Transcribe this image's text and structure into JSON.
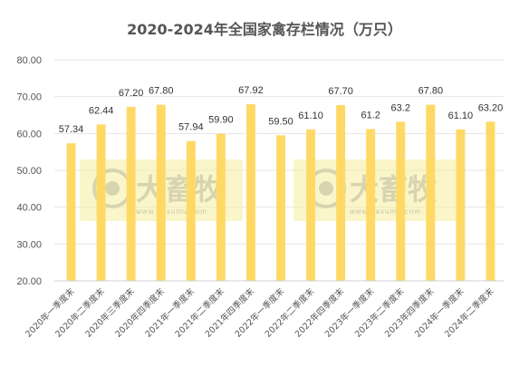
{
  "chart_data": {
    "type": "bar",
    "title": "2020-2024年全国家禽存栏情况（万只）",
    "categories": [
      "2020年一季度末",
      "2020年二季度末",
      "2020年三季度末",
      "2020年四季度末",
      "2021年一季度末",
      "2021年二季度末",
      "2021年四季度末",
      "2022年一季度末",
      "2022年二季度末",
      "2022年四季度末",
      "2023年一季度末",
      "2023年二季度末",
      "2023年四季度末",
      "2024年一季度末",
      "2024年二季度末"
    ],
    "values": [
      57.34,
      62.44,
      67.2,
      67.8,
      57.94,
      59.9,
      67.92,
      59.5,
      61.1,
      67.7,
      61.2,
      63.2,
      67.8,
      61.1,
      63.2
    ],
    "value_labels": [
      "57.34",
      "62.44",
      "67.20",
      "67.80",
      "57.94",
      "59.90",
      "67.92",
      "59.50",
      "61.10",
      "67.70",
      "61.2",
      "63.2",
      "67.80",
      "61.10",
      "63.20"
    ],
    "yticks": [
      "20.00",
      "30.00",
      "40.00",
      "50.00",
      "60.00",
      "70.00",
      "80.00"
    ],
    "ylim": [
      20,
      80
    ],
    "grid": true,
    "bar_color": "#ffd966"
  },
  "watermark": {
    "text": "大畜牧",
    "sub": "www.daxumu.com"
  }
}
